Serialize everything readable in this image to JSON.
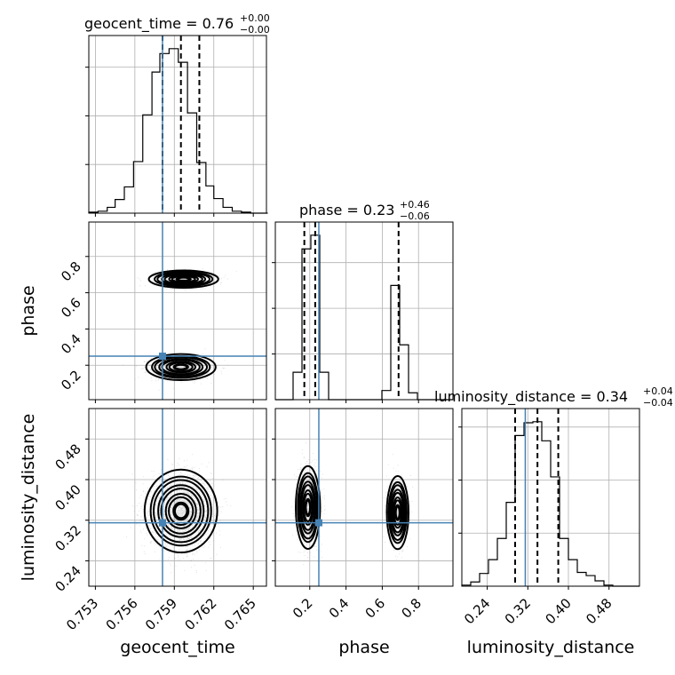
{
  "chart_data": {
    "type": "corner",
    "parameters": [
      "geocent_time",
      "phase",
      "luminosity_distance"
    ],
    "titles": [
      {
        "param": "geocent_time",
        "median": "0.76",
        "plus": "+0.00",
        "minus": "−0.00"
      },
      {
        "param": "phase",
        "median": "0.23",
        "plus": "+0.46",
        "minus": "−0.06"
      },
      {
        "param": "luminosity_distance",
        "median": "0.34",
        "plus": "+0.04",
        "minus": "−0.04"
      }
    ],
    "ranges": {
      "geocent_time": [
        0.7525,
        0.766
      ],
      "phase": [
        0.01,
        0.99
      ],
      "luminosity_distance": [
        0.19,
        0.54
      ]
    },
    "ticks": {
      "geocent_time": {
        "values": [
          0.753,
          0.756,
          0.759,
          0.762,
          0.765
        ],
        "labels": [
          "0.753",
          "0.756",
          "0.759",
          "0.762",
          "0.765"
        ]
      },
      "phase": {
        "values": [
          0.2,
          0.4,
          0.6,
          0.8
        ],
        "labels": [
          "0.2",
          "0.4",
          "0.6",
          "0.8"
        ]
      },
      "luminosity_distance": {
        "values": [
          0.24,
          0.32,
          0.4,
          0.48
        ],
        "labels": [
          "0.24",
          "0.32",
          "0.40",
          "0.48"
        ]
      }
    },
    "truths": {
      "geocent_time": 0.7581,
      "phase": 0.25,
      "luminosity_distance": 0.315
    },
    "quantiles": {
      "geocent_time": [
        0.7581,
        0.7595,
        0.7609
      ],
      "phase": [
        0.17,
        0.23,
        0.69
      ],
      "luminosity_distance": [
        0.295,
        0.339,
        0.38
      ]
    },
    "histograms": {
      "geocent_time": {
        "edges": [
          0.7525,
          0.7532,
          0.7539,
          0.7545,
          0.7552,
          0.7559,
          0.7566,
          0.7573,
          0.7579,
          0.7586,
          0.7593,
          0.76,
          0.7607,
          0.7614,
          0.762,
          0.7627,
          0.7634,
          0.7641,
          0.7648,
          0.7654,
          0.7661
        ],
        "counts": [
          1,
          2,
          6,
          14,
          27,
          53,
          101,
          145,
          164,
          169,
          155,
          103,
          52,
          28,
          15,
          6,
          2,
          1,
          0,
          0
        ]
      },
      "phase": {
        "edges": [
          0.01,
          0.059,
          0.108,
          0.157,
          0.206,
          0.255,
          0.304,
          0.353,
          0.402,
          0.451,
          0.5,
          0.549,
          0.598,
          0.647,
          0.696,
          0.745,
          0.794,
          0.843,
          0.892,
          0.941,
          0.99
        ],
        "counts": [
          0,
          0,
          60,
          330,
          360,
          60,
          0,
          0,
          0,
          0,
          0,
          0,
          20,
          250,
          120,
          15,
          0,
          0,
          0,
          0
        ]
      },
      "luminosity_distance": {
        "edges": [
          0.19,
          0.2075,
          0.225,
          0.2425,
          0.26,
          0.2775,
          0.295,
          0.3125,
          0.33,
          0.3475,
          0.365,
          0.3825,
          0.4,
          0.4175,
          0.435,
          0.4525,
          0.47,
          0.4875,
          0.505,
          0.5225,
          0.54
        ],
        "counts": [
          1,
          4,
          12,
          25,
          45,
          79,
          142,
          154,
          155,
          137,
          103,
          45,
          25,
          13,
          10,
          5,
          1,
          0,
          0,
          0
        ]
      }
    }
  }
}
